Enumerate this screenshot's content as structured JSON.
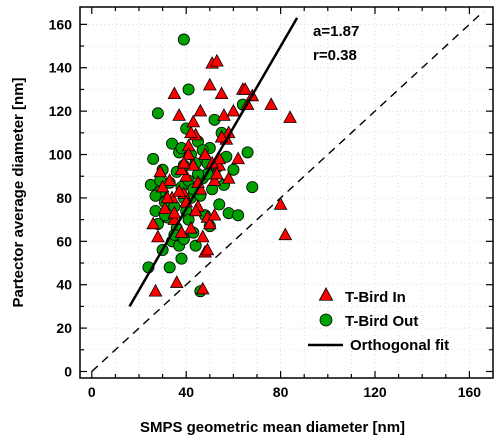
{
  "chart_data": {
    "type": "scatter",
    "xlabel": "SMPS geometric mean diameter [nm]",
    "ylabel": "Partector average diameter [nm]",
    "xlim": [
      -5,
      170
    ],
    "ylim": [
      -3,
      168
    ],
    "xticks": [
      0,
      40,
      80,
      120,
      160
    ],
    "yticks": [
      0,
      20,
      40,
      60,
      80,
      100,
      120,
      140,
      160
    ],
    "grid": true,
    "legend_position": "bottom-right",
    "annotations": [
      "a=1.87",
      "r=0.38"
    ],
    "colors": {
      "in": "#ff0000",
      "out": "#00a000",
      "fit": "#000000",
      "one_to_one": "#000000"
    },
    "series": [
      {
        "name": "T-Bird In",
        "marker": "triangle",
        "color": "#ff0000",
        "x": [
          27,
          29,
          31,
          33,
          35,
          35,
          37,
          38,
          39,
          40,
          41,
          42,
          43,
          44,
          45,
          46,
          47,
          48,
          49,
          50,
          51,
          52,
          53,
          54,
          55,
          56,
          57,
          58,
          60,
          62,
          64,
          66,
          68,
          76,
          80,
          82,
          84,
          26,
          30,
          34,
          38,
          42,
          46,
          50,
          54,
          58,
          40,
          44,
          48,
          52,
          36,
          32,
          28,
          45,
          55,
          65,
          47,
          43,
          41,
          39,
          37,
          35,
          49,
          51,
          53
        ],
        "y": [
          37,
          92,
          75,
          88,
          70,
          128,
          118,
          64,
          82,
          90,
          104,
          66,
          95,
          109,
          76,
          84,
          62,
          100,
          71,
          132,
          142,
          88,
          143,
          95,
          128,
          118,
          107,
          110,
          120,
          98,
          130,
          123,
          127,
          123,
          77,
          63,
          117,
          68,
          85,
          80,
          93,
          110,
          120,
          68,
          98,
          89,
          78,
          74,
          55,
          72,
          41,
          80,
          62,
          87,
          108,
          130,
          38,
          115,
          100,
          96,
          83,
          73,
          56,
          96,
          91
        ]
      },
      {
        "name": "T-Bird Out",
        "marker": "circle",
        "color": "#00a000",
        "x": [
          24,
          25,
          26,
          27,
          28,
          28,
          29,
          30,
          30,
          31,
          32,
          33,
          34,
          34,
          35,
          36,
          36,
          37,
          38,
          38,
          39,
          39,
          40,
          40,
          41,
          42,
          42,
          43,
          44,
          44,
          45,
          46,
          46,
          47,
          48,
          48,
          49,
          50,
          50,
          51,
          52,
          53,
          54,
          55,
          56,
          57,
          58,
          60,
          62,
          64,
          66,
          68,
          35,
          37,
          39,
          41,
          43,
          45,
          47,
          49,
          33,
          31,
          29,
          27,
          41,
          39,
          38
        ],
        "y": [
          48,
          86,
          98,
          74,
          68,
          119,
          83,
          56,
          93,
          78,
          71,
          87,
          60,
          105,
          76,
          92,
          66,
          101,
          52,
          85,
          153,
          95,
          112,
          74,
          88,
          80,
          100,
          64,
          96,
          58,
          106,
          81,
          37,
          89,
          98,
          72,
          91,
          67,
          103,
          84,
          116,
          94,
          77,
          110,
          86,
          99,
          73,
          93,
          72,
          123,
          101,
          85,
          63,
          58,
          80,
          70,
          84,
          91,
          102,
          96,
          48,
          72,
          88,
          81,
          130,
          61,
          103
        ]
      }
    ],
    "fit_line": {
      "name": "Orthogonal fit",
      "slope": 1.87,
      "points": [
        [
          16,
          30
        ],
        [
          87,
          163
        ]
      ]
    },
    "reference_line": {
      "style": "dashed",
      "points": [
        [
          0,
          0
        ],
        [
          166,
          166
        ]
      ]
    }
  }
}
